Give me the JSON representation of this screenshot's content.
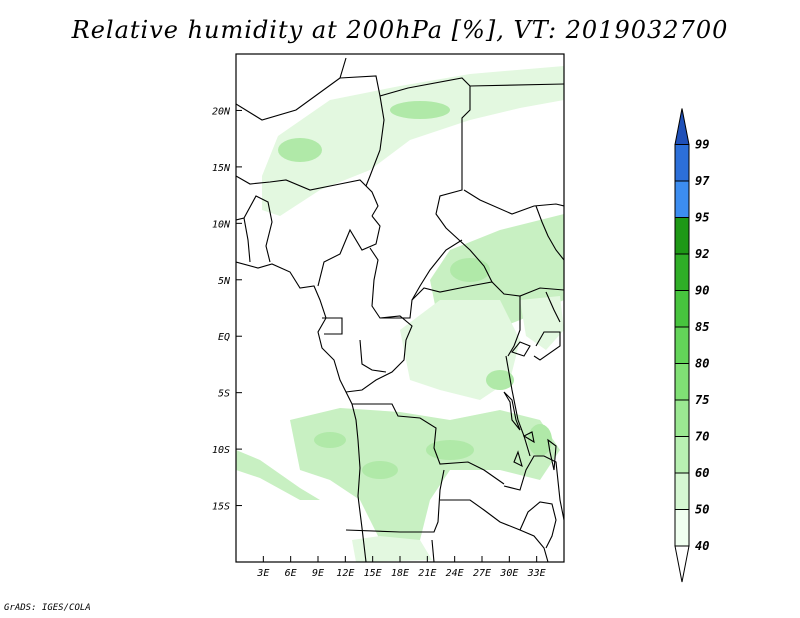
{
  "title": "Relative humidity at 200hPa [%], VT: 2019032700",
  "credit": "GrADS: IGES/COLA",
  "map": {
    "lon_range": [
      0,
      36
    ],
    "lat_range": [
      -20,
      25
    ],
    "lon_ticks": [
      {
        "value": 3,
        "label": "3E"
      },
      {
        "value": 6,
        "label": "6E"
      },
      {
        "value": 9,
        "label": "9E"
      },
      {
        "value": 12,
        "label": "12E"
      },
      {
        "value": 15,
        "label": "15E"
      },
      {
        "value": 18,
        "label": "18E"
      },
      {
        "value": 21,
        "label": "21E"
      },
      {
        "value": 24,
        "label": "24E"
      },
      {
        "value": 27,
        "label": "27E"
      },
      {
        "value": 30,
        "label": "30E"
      },
      {
        "value": 33,
        "label": "33E"
      }
    ],
    "lat_ticks": [
      {
        "value": 20,
        "label": "20N"
      },
      {
        "value": 15,
        "label": "15N"
      },
      {
        "value": 10,
        "label": "10N"
      },
      {
        "value": 5,
        "label": "5N"
      },
      {
        "value": 0,
        "label": "EQ"
      },
      {
        "value": -5,
        "label": "5S"
      },
      {
        "value": -10,
        "label": "10S"
      },
      {
        "value": -15,
        "label": "15S"
      }
    ]
  },
  "colorbar": {
    "levels": [
      {
        "label": "40",
        "color": "#f0fff0"
      },
      {
        "label": "50",
        "color": "#d5f7d2"
      },
      {
        "label": "60",
        "color": "#b8f0b2"
      },
      {
        "label": "70",
        "color": "#9be892"
      },
      {
        "label": "75",
        "color": "#80e075"
      },
      {
        "label": "80",
        "color": "#63d459"
      },
      {
        "label": "85",
        "color": "#47c43e"
      },
      {
        "label": "90",
        "color": "#2fae27"
      },
      {
        "label": "92",
        "color": "#1e9816"
      },
      {
        "label": "95",
        "color": "#3c8df0"
      },
      {
        "label": "97",
        "color": "#2c6fd9"
      },
      {
        "label": "99",
        "color": "#1f50b8"
      }
    ],
    "bottom_color": "#ffffff",
    "top_color": "#1f50b8"
  },
  "fields": {
    "palette": [
      "#e3f8e0",
      "#c8f0c2",
      "#b0e9a8"
    ]
  }
}
